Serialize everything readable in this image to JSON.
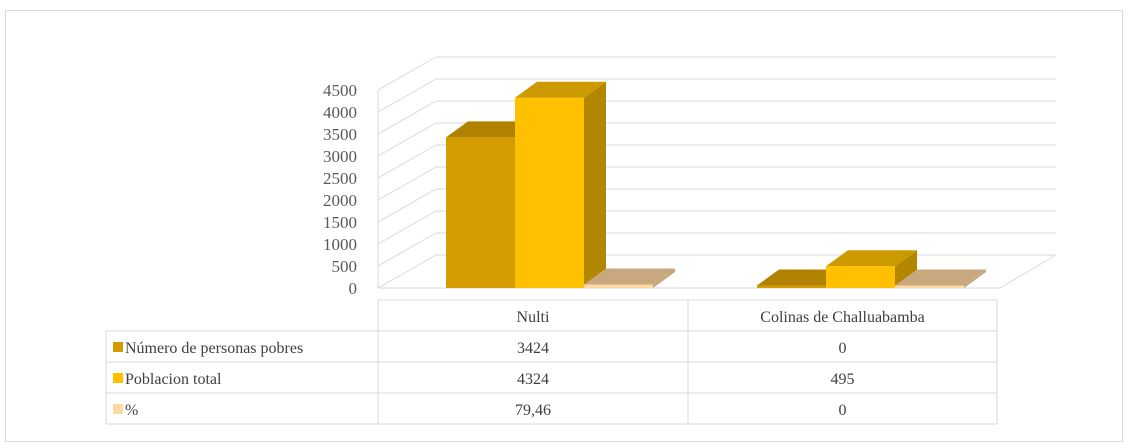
{
  "chart_data": {
    "type": "bar",
    "categories": [
      "Nulti",
      "Colinas de Challuabamba"
    ],
    "series": [
      {
        "name": "Número de personas pobres",
        "values": [
          3424,
          0
        ],
        "labels": [
          "3424",
          "0"
        ],
        "color": "#d49c00",
        "side": "#a37700",
        "top": "#b08200"
      },
      {
        "name": "Poblacion total",
        "values": [
          4324,
          495
        ],
        "labels": [
          "4324",
          "495"
        ],
        "color": "#ffc000",
        "side": "#b38600",
        "top": "#cc9a00"
      },
      {
        "name": "%",
        "values": [
          79.46,
          0
        ],
        "labels": [
          "79,46",
          "0"
        ],
        "color": "#ffd9a3",
        "side": "#c4a87a",
        "top": "#c9a87f"
      }
    ],
    "y_ticks": [
      "0",
      "500",
      "1000",
      "1500",
      "2000",
      "2500",
      "3000",
      "3500",
      "4000",
      "4500"
    ],
    "ylim": [
      0,
      4500
    ],
    "grid": true,
    "legend": "table-left"
  }
}
